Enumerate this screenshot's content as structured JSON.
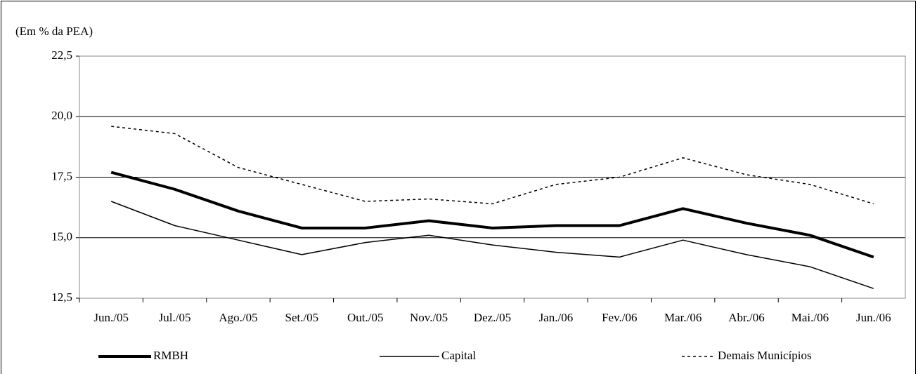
{
  "chart_data": {
    "type": "line",
    "y_axis_label": "(Em % da PEA)",
    "categories": [
      "Jun./05",
      "Jul./05",
      "Ago./05",
      "Set./05",
      "Out./05",
      "Nov./05",
      "Dez./05",
      "Jan./06",
      "Fev./06",
      "Mar./06",
      "Abr./06",
      "Mai./06",
      "Jun./06"
    ],
    "series": [
      {
        "name": "RMBH",
        "color": "#000000",
        "line_style": "bold",
        "values": [
          17.7,
          17.0,
          16.1,
          15.4,
          15.4,
          15.7,
          15.4,
          15.5,
          15.5,
          16.2,
          15.6,
          15.1,
          14.2
        ]
      },
      {
        "name": "Capital",
        "color": "#000000",
        "line_style": "thin",
        "values": [
          16.5,
          15.5,
          14.9,
          14.3,
          14.8,
          15.1,
          14.7,
          14.4,
          14.2,
          14.9,
          14.3,
          13.8,
          12.9
        ]
      },
      {
        "name": "Demais Municípios",
        "color": "#000000",
        "line_style": "dotted",
        "values": [
          19.6,
          19.3,
          17.9,
          17.2,
          16.5,
          16.6,
          16.4,
          17.2,
          17.5,
          18.3,
          17.6,
          17.2,
          16.4
        ]
      }
    ],
    "ylim": [
      12.5,
      22.5
    ],
    "yticks": [
      {
        "value": 12.5,
        "label": "12,5"
      },
      {
        "value": 15,
        "label": "15,0"
      },
      {
        "value": 17.5,
        "label": "17,5"
      },
      {
        "value": 20,
        "label": "20,0"
      },
      {
        "value": 22.5,
        "label": "22,5"
      }
    ],
    "grid": true,
    "legend_position": "bottom"
  }
}
